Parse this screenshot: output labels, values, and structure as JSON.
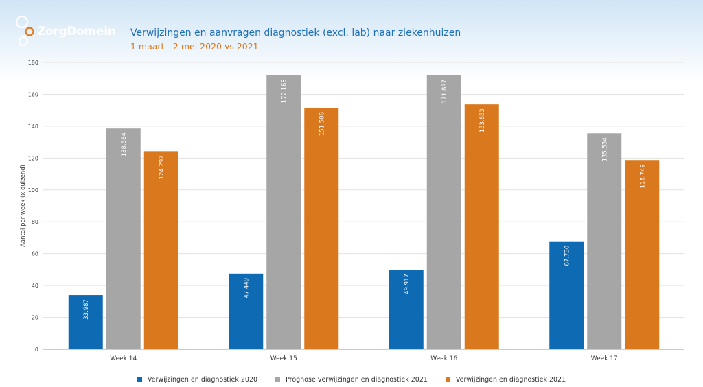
{
  "header": {
    "logo_text": "ZorgDomein",
    "title": "Verwijzingen en aanvragen diagnostiek (excl. lab) naar ziekenhuizen",
    "subtitle": "1 maart - 2 mei 2020 vs 2021"
  },
  "colors": {
    "blue": "#0e6ab3",
    "gray": "#a6a6a6",
    "orange": "#d9781c"
  },
  "chart_data": {
    "type": "bar",
    "categories": [
      "Week 14",
      "Week 15",
      "Week 16",
      "Week 17"
    ],
    "series": [
      {
        "name": "Verwijzingen en diagnostiek 2020",
        "values": [
          33.987,
          47.449,
          49.917,
          67.73
        ],
        "labels": [
          "33.987",
          "47.449",
          "49.917",
          "67.730"
        ],
        "color": "#0e6ab3"
      },
      {
        "name": "Prognose verwijzingen en diagnostiek 2021",
        "values": [
          138.584,
          172.165,
          171.897,
          135.534
        ],
        "labels": [
          "138.584",
          "172.165",
          "171.897",
          "135.534"
        ],
        "color": "#a6a6a6"
      },
      {
        "name": "Verwijzingen en diagnostiek 2021",
        "values": [
          124.297,
          151.586,
          153.653,
          118.749
        ],
        "labels": [
          "124.297",
          "151.586",
          "153.653",
          "118.749"
        ],
        "color": "#d9781c"
      }
    ],
    "ylabel": "Aantal per week (x duizend)",
    "xlabel": "",
    "ylim": [
      0,
      180
    ],
    "yticks": [
      0,
      20,
      40,
      60,
      80,
      100,
      120,
      140,
      160,
      180
    ],
    "grid": true,
    "legend": "bottom-center"
  }
}
